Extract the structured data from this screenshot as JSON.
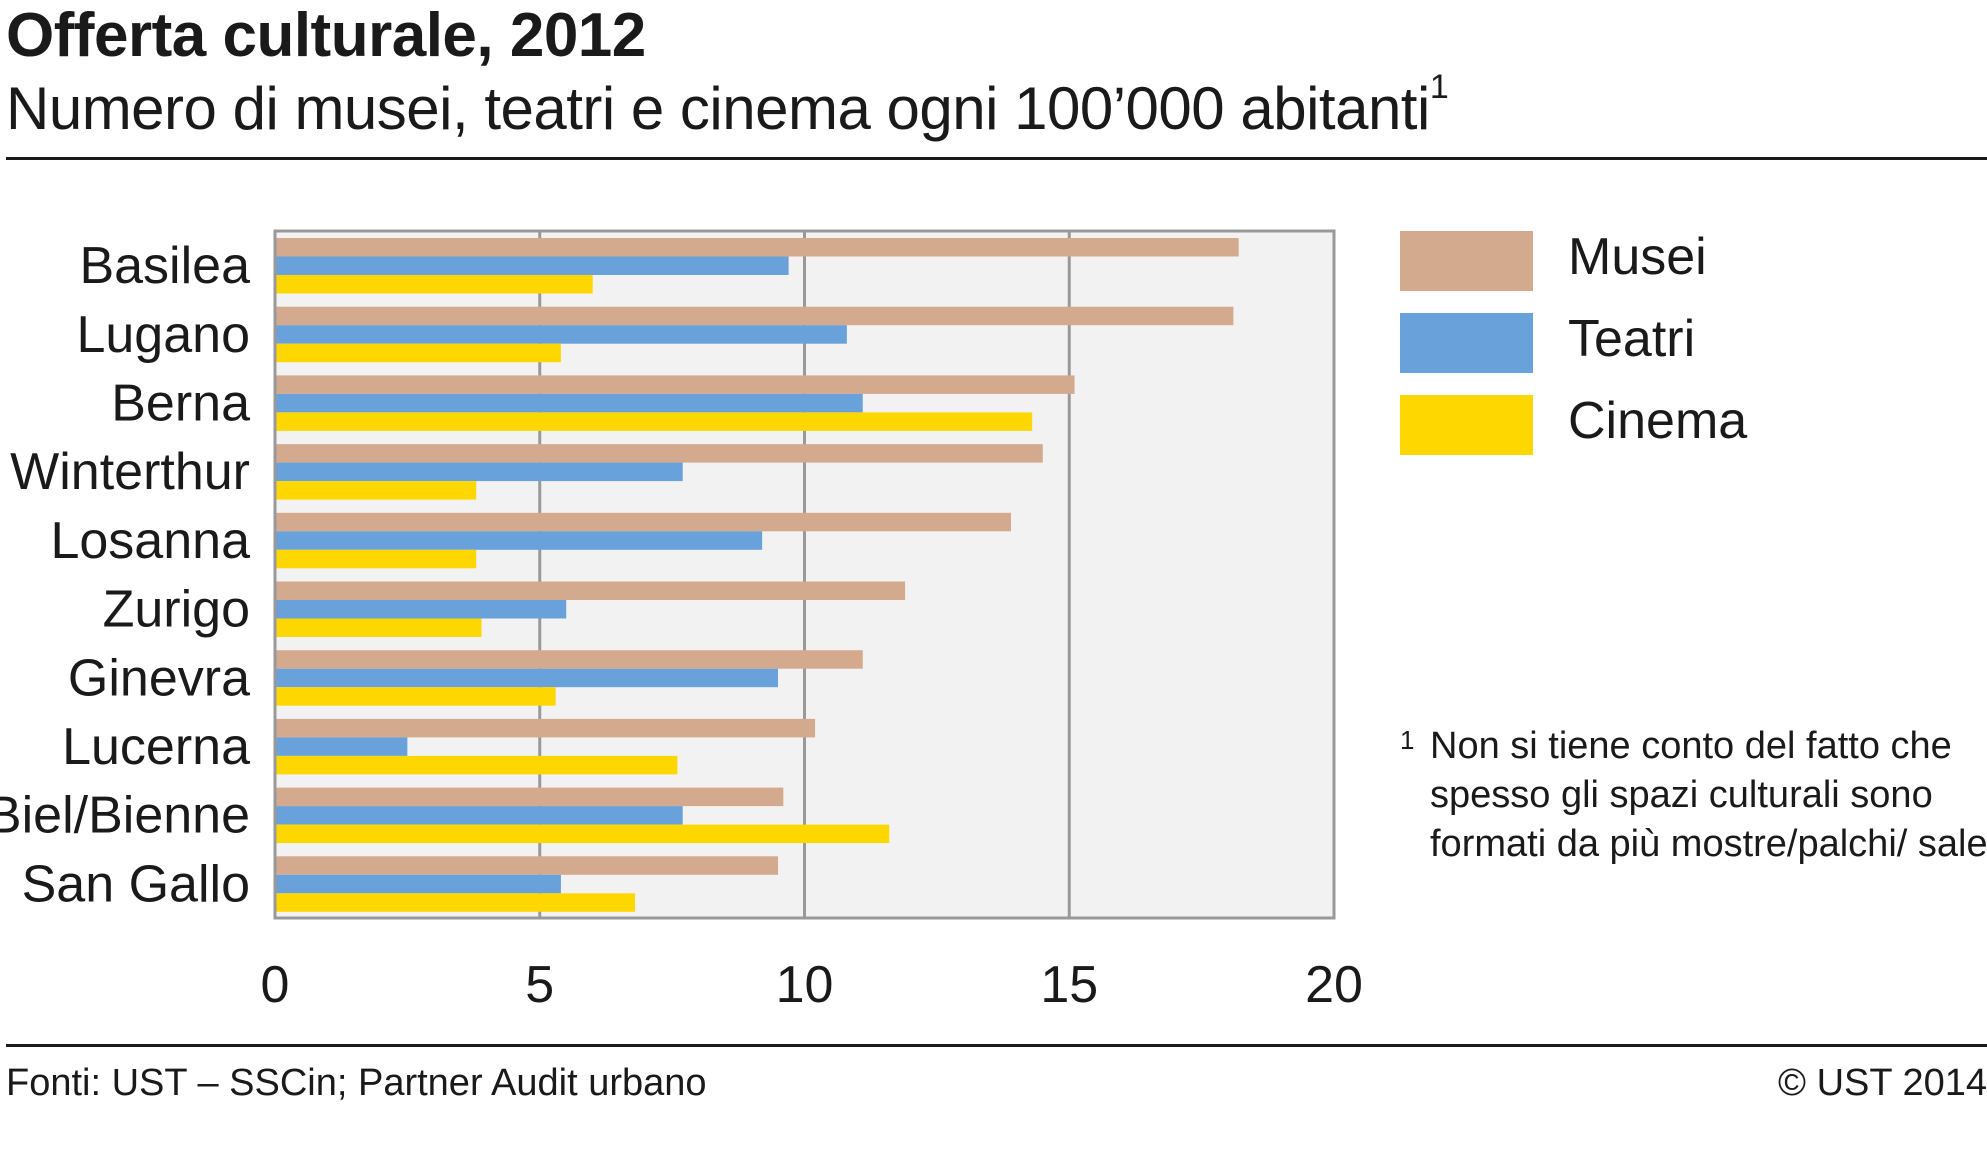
{
  "header": {
    "title": "Offerta culturale, 2012",
    "subtitle": "Numero di musei, teatri e cinema ogni 100’000 abitanti",
    "subtitle_footnote_mark": "1"
  },
  "footnote": {
    "mark": "1",
    "text": "Non si tiene conto del fatto che spesso gli spazi culturali sono formati da più mostre/palchi/ sale"
  },
  "footer": {
    "source": "Fonti: UST – SSCin; Partner Audit urbano",
    "copyright": "© UST 2014"
  },
  "chart_data": {
    "type": "bar",
    "orientation": "horizontal",
    "categories": [
      "Basilea",
      "Lugano",
      "Berna",
      "Winterthur",
      "Losanna",
      "Zurigo",
      "Ginevra",
      "Lucerna",
      "Biel/Bienne",
      "San Gallo"
    ],
    "series": [
      {
        "name": "Musei",
        "color": "#d4aa8e",
        "values": [
          18.2,
          18.1,
          15.1,
          14.5,
          13.9,
          11.9,
          11.1,
          10.2,
          9.6,
          9.5
        ]
      },
      {
        "name": "Teatri",
        "color": "#69a1db",
        "values": [
          9.7,
          10.8,
          11.1,
          7.7,
          9.2,
          5.5,
          9.5,
          2.5,
          7.7,
          5.4
        ]
      },
      {
        "name": "Cinema",
        "color": "#ffd700",
        "values": [
          6.0,
          5.4,
          14.3,
          3.8,
          3.8,
          3.9,
          5.3,
          7.6,
          11.6,
          6.8
        ]
      }
    ],
    "xlim": [
      0,
      20
    ],
    "xticks": [
      0,
      5,
      10,
      15,
      20
    ],
    "grid": true,
    "legend_position": "right"
  }
}
